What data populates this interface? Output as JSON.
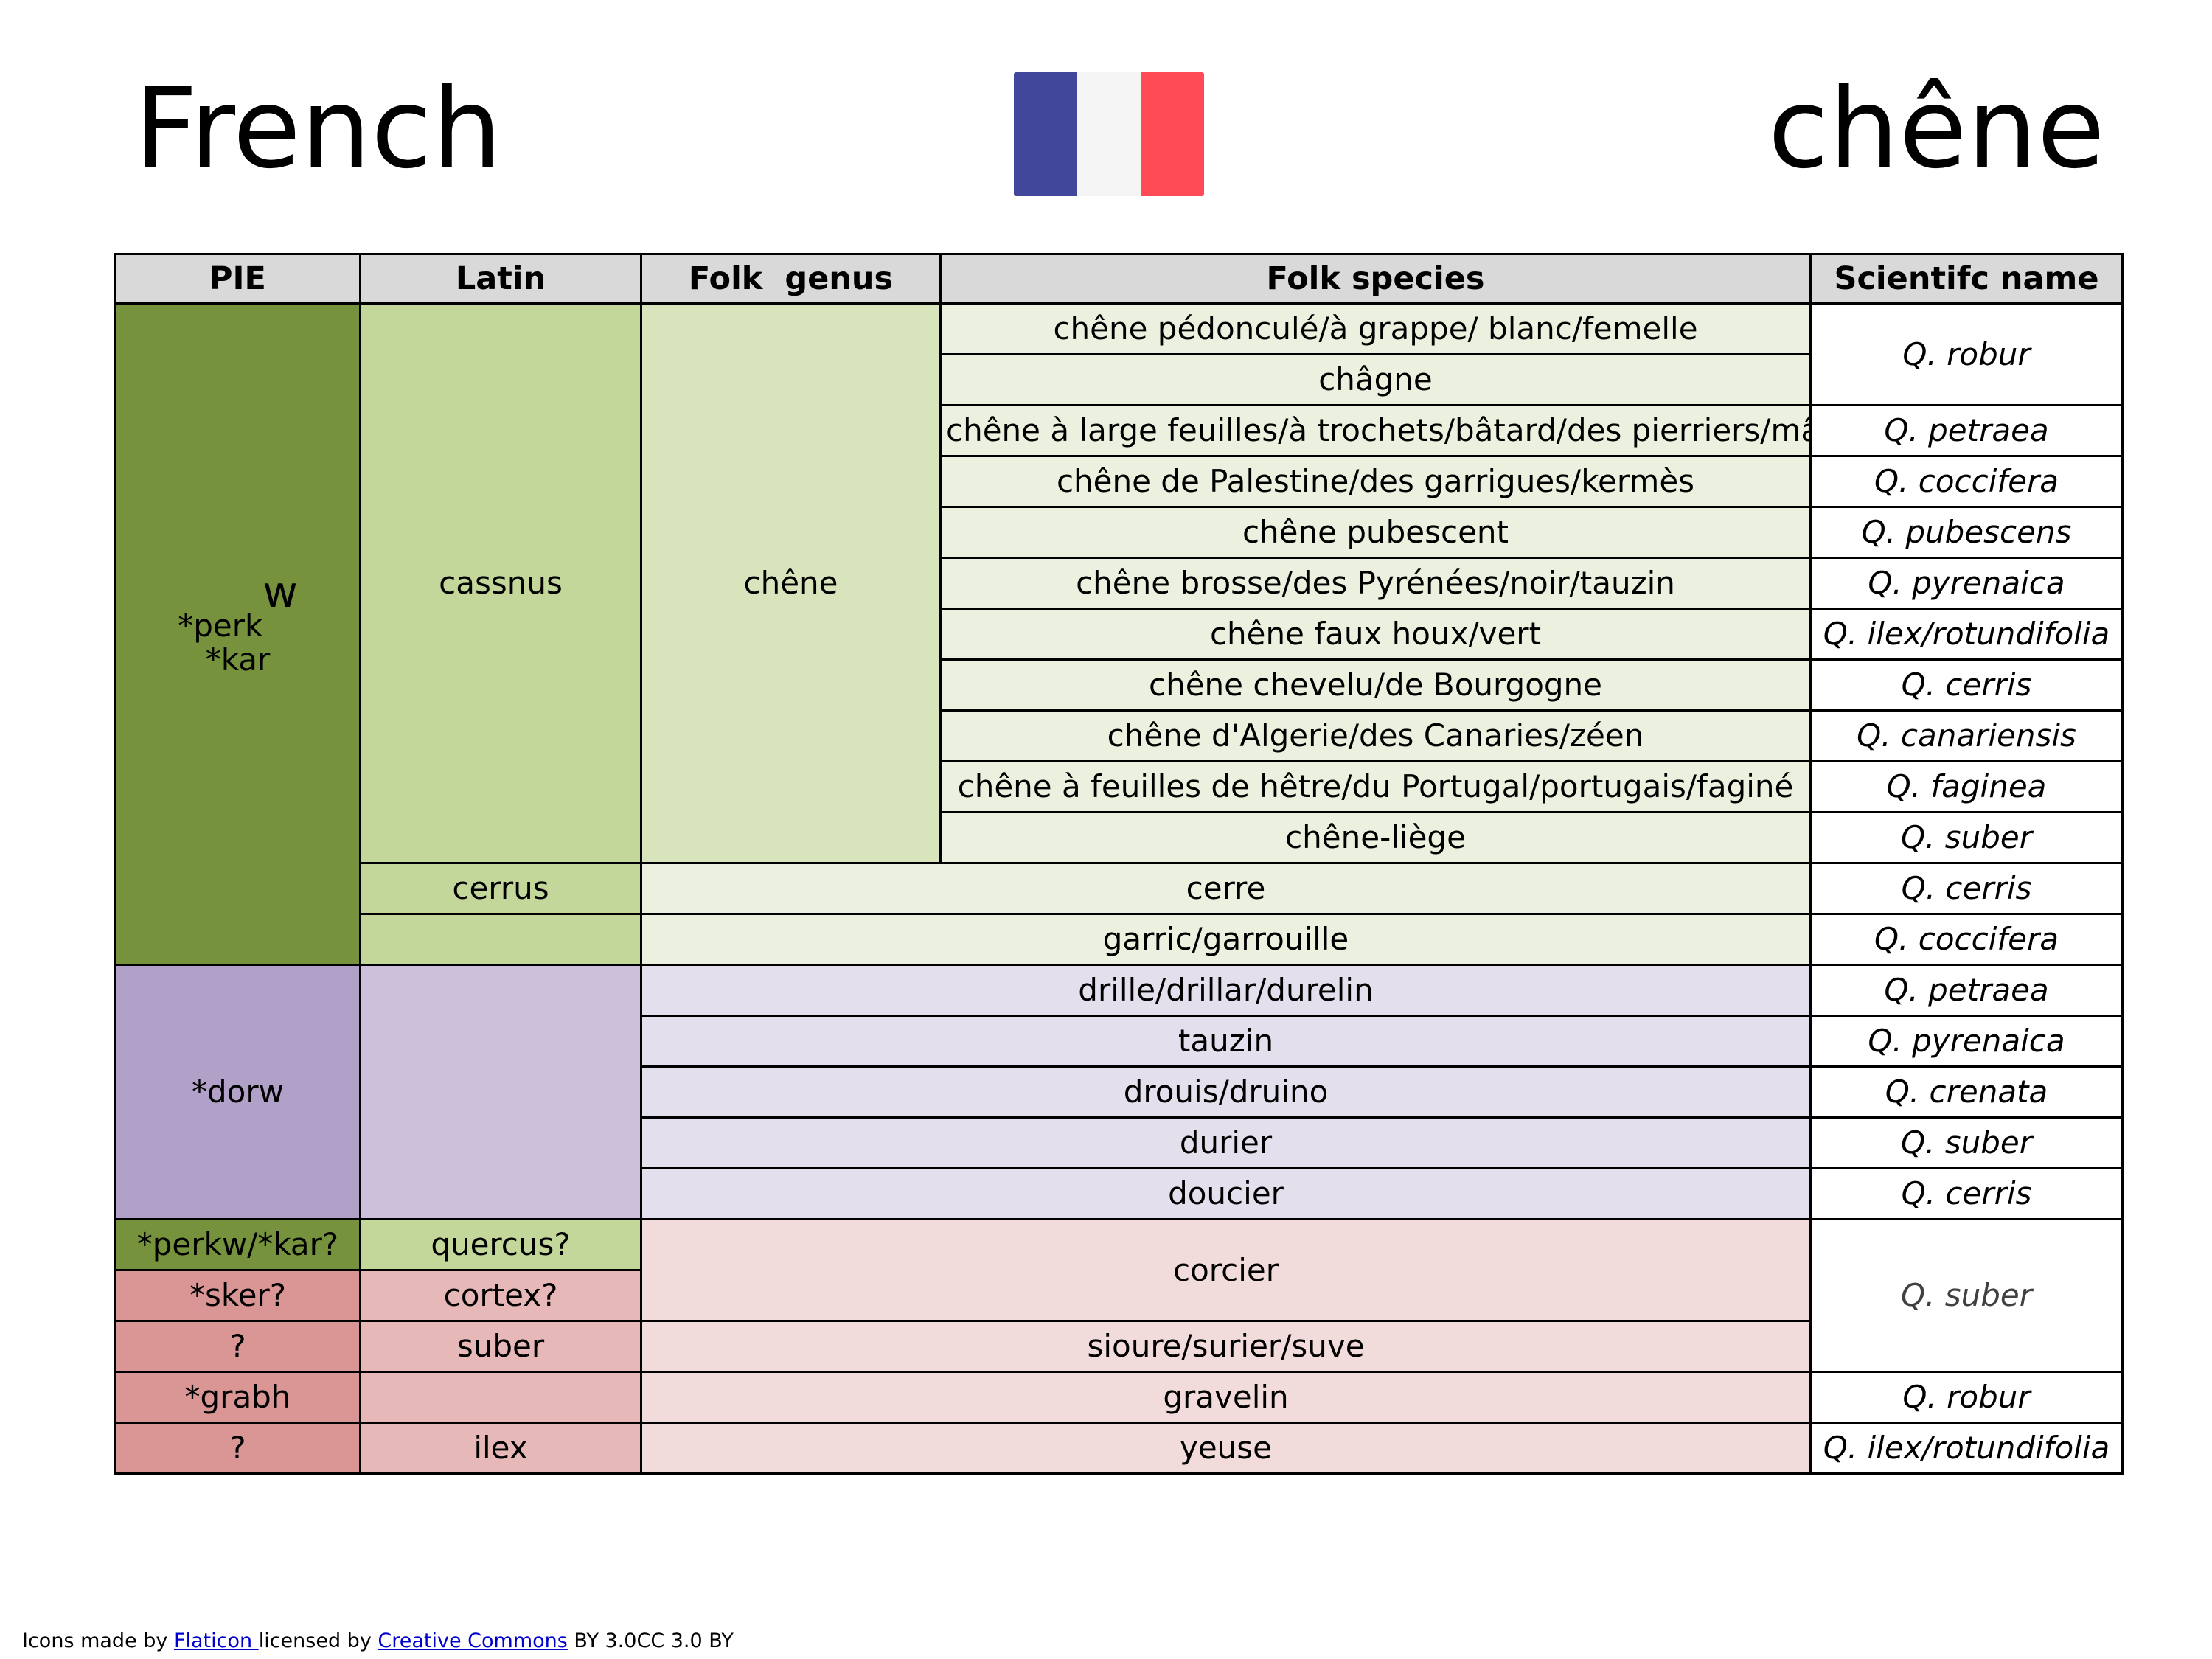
{
  "header": {
    "language": "French",
    "word": "chêne",
    "flag_colors": [
      "#41479b",
      "#f5f5f5",
      "#ff4b55"
    ]
  },
  "table": {
    "columns": [
      "PIE",
      "Latin",
      "Folk  genus",
      "Folk species",
      "Scientifc name"
    ],
    "pie": {
      "perkw_root": "*perk",
      "perkw_sup": "w",
      "kar": "*kar",
      "dorw": "*dorw",
      "perkw_kar_q": "*perkw/*kar?",
      "sker": "*sker?",
      "q1": "?",
      "grabh": "*grabh",
      "q2": "?"
    },
    "latin": {
      "cassnus": "cassnus",
      "cerrus": "cerrus",
      "quercus": "quercus?",
      "cortex": "cortex?",
      "suber": "suber",
      "ilex": "ilex"
    },
    "genus": {
      "chene": "chêne"
    },
    "species": [
      "chêne pédonculé/à grappe/ blanc/femelle",
      "châgne",
      "chêne à large feuilles/à trochets/bâtard/des pierriers/mâle/noir/rouvre/-roure/sessile",
      "chêne de Palestine/des garrigues/kermès",
      "chêne pubescent",
      "chêne brosse/des Pyrénées/noir/tauzin",
      "chêne faux houx/vert",
      "chêne chevelu/de Bourgogne",
      "chêne d'Algerie/des Canaries/zéen",
      "chêne à feuilles de hêtre/du Portugal/portugais/faginé",
      "chêne-liège"
    ],
    "other_names": {
      "cerre": "cerre",
      "garric": "garric/garrouille",
      "drille": "drille/drillar/durelin",
      "tauzin": "tauzin",
      "drouis": "drouis/druino",
      "durier": "durier",
      "doucier": "doucier",
      "corcier": "corcier",
      "sioure": "sioure/surier/suve",
      "gravelin": "gravelin",
      "yeuse": "yeuse"
    },
    "scientific": {
      "robur": "Q. robur",
      "petraea": "Q. petraea",
      "coccifera": "Q. coccifera",
      "pubescens": "Q. pubescens",
      "pyrenaica": "Q. pyrenaica",
      "ilex": "Q. ilex/rotundifolia",
      "cerris": "Q. cerris",
      "canariensis": "Q. canariensis",
      "faginea": "Q. faginea",
      "suber": "Q. suber",
      "cerris2": "Q. cerris",
      "coccifera2": "Q. coccifera",
      "petraea2": "Q. petraea",
      "pyrenaica2": "Q. pyrenaica",
      "crenata": "Q. crenata",
      "suber2": "Q. suber",
      "cerris3": "Q. cerris",
      "suber3": "Q. suber",
      "robur2": "Q. robur",
      "ilex2": "Q. ilex/rotundifolia"
    }
  },
  "footer": {
    "prefix": "Icons made by ",
    "flaticon": "Flaticon ",
    "middle": "licensed by ",
    "cc": "Creative Commons",
    "suffix": " BY 3.0CC 3.0 BY"
  }
}
